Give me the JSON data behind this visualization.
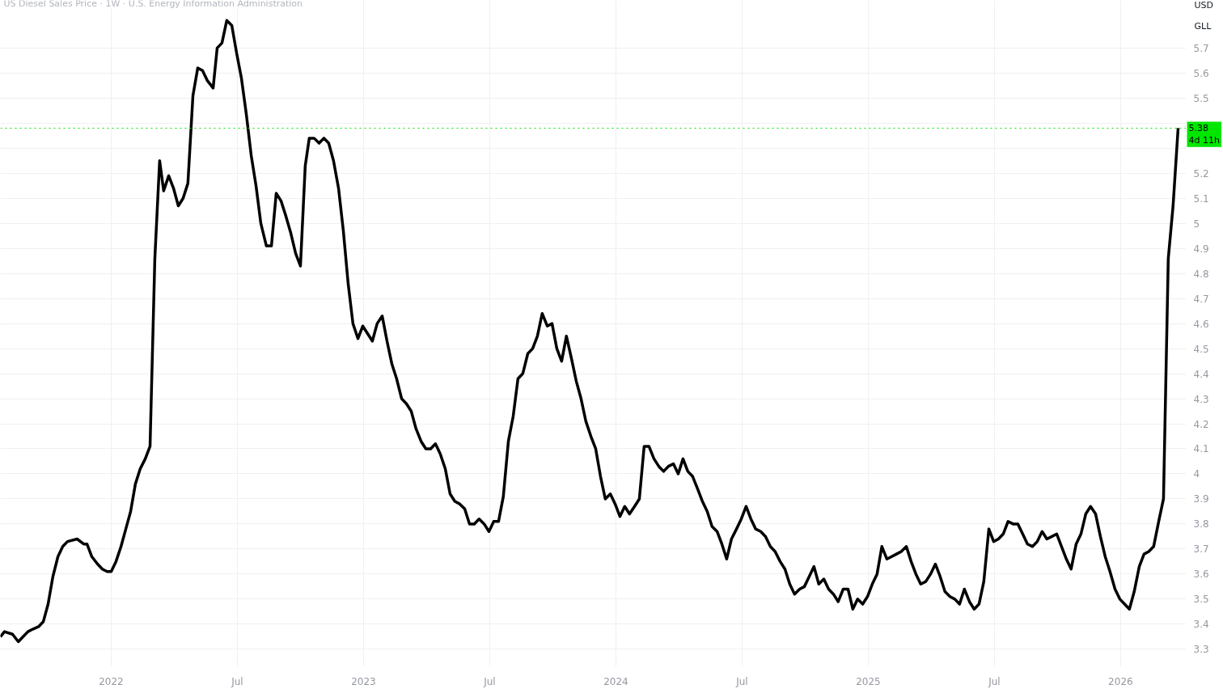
{
  "chart_data": {
    "type": "line",
    "title": "US Diesel Sales Price · 1W · U.S. Energy Information Administration",
    "x": [
      2021.561,
      2021.577,
      2021.609,
      2021.632,
      2021.651,
      2021.67,
      2021.689,
      2021.712,
      2021.731,
      2021.75,
      2021.769,
      2021.789,
      2021.808,
      2021.827,
      2021.865,
      2021.891,
      2021.904,
      2021.923,
      2021.946,
      2021.965,
      2021.984,
      2022.0,
      2022.019,
      2022.039,
      2022.058,
      2022.077,
      2022.096,
      2022.115,
      2022.135,
      2022.154,
      2022.173,
      2022.192,
      2022.208,
      2022.228,
      2022.247,
      2022.266,
      2022.285,
      2022.304,
      2022.324,
      2022.343,
      2022.362,
      2022.381,
      2022.404,
      2022.42,
      2022.439,
      2022.458,
      2022.478,
      2022.497,
      2022.516,
      2022.535,
      2022.555,
      2022.574,
      2022.593,
      2022.615,
      2022.635,
      2022.654,
      2022.673,
      2022.692,
      2022.712,
      2022.731,
      2022.75,
      2022.769,
      2022.785,
      2022.804,
      2022.824,
      2022.843,
      2022.862,
      2022.881,
      2022.901,
      2022.92,
      2022.939,
      2022.958,
      2022.978,
      2022.997,
      2023.016,
      2023.035,
      2023.054,
      2023.074,
      2023.093,
      2023.112,
      2023.131,
      2023.151,
      2023.17,
      2023.189,
      2023.208,
      2023.228,
      2023.247,
      2023.266,
      2023.285,
      2023.304,
      2023.324,
      2023.343,
      2023.362,
      2023.381,
      2023.401,
      2023.42,
      2023.439,
      2023.458,
      2023.478,
      2023.497,
      2023.516,
      2023.535,
      2023.554,
      2023.574,
      2023.593,
      2023.612,
      2023.631,
      2023.651,
      2023.67,
      2023.689,
      2023.708,
      2023.728,
      2023.747,
      2023.766,
      2023.785,
      2023.804,
      2023.824,
      2023.843,
      2023.862,
      2023.881,
      2023.901,
      2023.92,
      2023.939,
      2023.958,
      2023.978,
      2023.997,
      2024.016,
      2024.035,
      2024.054,
      2024.074,
      2024.093,
      2024.112,
      2024.131,
      2024.151,
      2024.17,
      2024.189,
      2024.208,
      2024.228,
      2024.247,
      2024.266,
      2024.285,
      2024.304,
      2024.324,
      2024.343,
      2024.362,
      2024.381,
      2024.401,
      2024.42,
      2024.439,
      2024.458,
      2024.478,
      2024.497,
      2024.516,
      2024.535,
      2024.554,
      2024.574,
      2024.593,
      2024.612,
      2024.631,
      2024.651,
      2024.67,
      2024.689,
      2024.708,
      2024.728,
      2024.747,
      2024.766,
      2024.785,
      2024.804,
      2024.824,
      2024.843,
      2024.862,
      2024.881,
      2024.901,
      2024.92,
      2024.939,
      2024.958,
      2024.978,
      2024.997,
      2025.016,
      2025.035,
      2025.054,
      2025.074,
      2025.093,
      2025.112,
      2025.131,
      2025.151,
      2025.17,
      2025.189,
      2025.208,
      2025.228,
      2025.247,
      2025.266,
      2025.285,
      2025.304,
      2025.324,
      2025.343,
      2025.362,
      2025.381,
      2025.401,
      2025.42,
      2025.439,
      2025.458,
      2025.478,
      2025.497,
      2025.516,
      2025.535,
      2025.554,
      2025.574,
      2025.593,
      2025.612,
      2025.631,
      2025.651,
      2025.67,
      2025.689,
      2025.708,
      2025.728,
      2025.747,
      2025.766,
      2025.785,
      2025.804,
      2025.824,
      2025.843,
      2025.862,
      2025.881,
      2025.901,
      2025.92,
      2025.939,
      2025.958,
      2025.978,
      2025.997,
      2026.016,
      2026.035,
      2026.054,
      2026.074,
      2026.093,
      2026.112,
      2026.131,
      2026.151,
      2026.17,
      2026.189,
      2026.208,
      2026.228
    ],
    "series": [
      {
        "color": "#000000",
        "values": [
          3.35,
          3.37,
          3.36,
          3.33,
          3.35,
          3.37,
          3.38,
          3.39,
          3.41,
          3.48,
          3.59,
          3.67,
          3.71,
          3.73,
          3.74,
          3.72,
          3.72,
          3.67,
          3.64,
          3.62,
          3.61,
          3.61,
          3.65,
          3.71,
          3.78,
          3.85,
          3.96,
          4.02,
          4.06,
          4.11,
          4.86,
          5.25,
          5.13,
          5.19,
          5.14,
          5.07,
          5.1,
          5.16,
          5.51,
          5.62,
          5.61,
          5.57,
          5.54,
          5.7,
          5.72,
          5.81,
          5.79,
          5.68,
          5.58,
          5.44,
          5.27,
          5.15,
          5.0,
          4.91,
          4.91,
          5.12,
          5.09,
          5.03,
          4.96,
          4.88,
          4.83,
          5.23,
          5.34,
          5.34,
          5.32,
          5.34,
          5.32,
          5.25,
          5.14,
          4.97,
          4.76,
          4.6,
          4.54,
          4.59,
          4.56,
          4.53,
          4.6,
          4.63,
          4.53,
          4.44,
          4.38,
          4.3,
          4.28,
          4.25,
          4.18,
          4.13,
          4.1,
          4.1,
          4.12,
          4.08,
          4.02,
          3.92,
          3.89,
          3.88,
          3.86,
          3.8,
          3.8,
          3.82,
          3.8,
          3.77,
          3.81,
          3.81,
          3.91,
          4.13,
          4.23,
          4.38,
          4.4,
          4.48,
          4.5,
          4.55,
          4.64,
          4.59,
          4.6,
          4.5,
          4.45,
          4.55,
          4.46,
          4.37,
          4.3,
          4.21,
          4.15,
          4.1,
          3.99,
          3.9,
          3.92,
          3.88,
          3.83,
          3.87,
          3.84,
          3.87,
          3.9,
          4.11,
          4.11,
          4.06,
          4.03,
          4.01,
          4.03,
          4.04,
          4.0,
          4.06,
          4.01,
          3.99,
          3.94,
          3.89,
          3.85,
          3.79,
          3.77,
          3.72,
          3.66,
          3.74,
          3.78,
          3.82,
          3.87,
          3.82,
          3.78,
          3.77,
          3.75,
          3.71,
          3.69,
          3.65,
          3.62,
          3.56,
          3.52,
          3.54,
          3.55,
          3.59,
          3.63,
          3.56,
          3.58,
          3.54,
          3.52,
          3.49,
          3.54,
          3.54,
          3.46,
          3.5,
          3.48,
          3.51,
          3.56,
          3.6,
          3.71,
          3.66,
          3.67,
          3.68,
          3.69,
          3.71,
          3.65,
          3.6,
          3.56,
          3.57,
          3.6,
          3.64,
          3.59,
          3.53,
          3.51,
          3.5,
          3.48,
          3.54,
          3.49,
          3.46,
          3.48,
          3.57,
          3.78,
          3.73,
          3.74,
          3.76,
          3.81,
          3.8,
          3.8,
          3.76,
          3.72,
          3.71,
          3.73,
          3.77,
          3.74,
          3.75,
          3.76,
          3.71,
          3.66,
          3.62,
          3.72,
          3.76,
          3.84,
          3.87,
          3.84,
          3.75,
          3.67,
          3.61,
          3.54,
          3.5,
          3.48,
          3.46,
          3.53,
          3.63,
          3.68,
          3.69,
          3.71,
          3.81,
          3.9,
          4.86,
          5.07,
          5.38
        ]
      }
    ],
    "xlim": [
      2021.561,
      2026.26
    ],
    "ylim": [
      3.23,
      5.89
    ],
    "xticks": [
      {
        "value": 2022,
        "label": "2022"
      },
      {
        "value": 2022.5,
        "label": "Jul"
      },
      {
        "value": 2023,
        "label": "2023"
      },
      {
        "value": 2023.5,
        "label": "Jul"
      },
      {
        "value": 2024,
        "label": "2024"
      },
      {
        "value": 2024.5,
        "label": "Jul"
      },
      {
        "value": 2025,
        "label": "2025"
      },
      {
        "value": 2025.5,
        "label": "Jul"
      },
      {
        "value": 2026,
        "label": "2026"
      }
    ],
    "yticks": [
      3.3,
      3.4,
      3.5,
      3.6,
      3.7,
      3.8,
      3.9,
      4,
      4.1,
      4.2,
      4.3,
      4.4,
      4.5,
      4.6,
      4.7,
      4.8,
      4.9,
      5,
      5.1,
      5.2,
      {
        "value": 5.3,
        "label": null
      },
      {
        "value": 5.4,
        "label": null
      },
      5.5,
      5.6,
      5.7
    ],
    "ref_lines": [
      {
        "axis": "y",
        "value": 5.38,
        "label": "5.38",
        "color": "#00e600",
        "line_style": "dotted"
      }
    ],
    "annotations": [
      "4d 11h",
      "USD",
      "GLL"
    ],
    "grid": true,
    "marker": "none",
    "line_style": "solid"
  }
}
